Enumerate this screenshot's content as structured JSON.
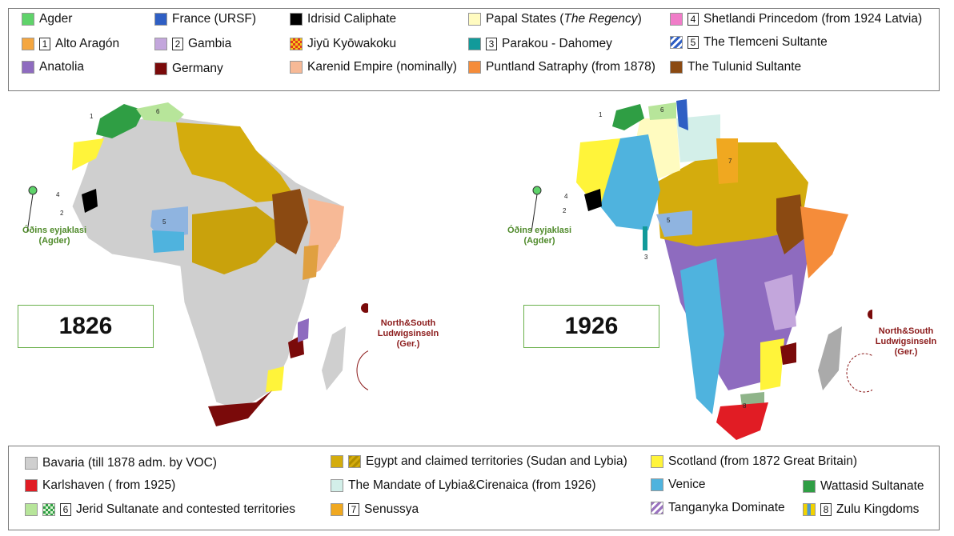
{
  "legend_top": [
    {
      "label": "Agder",
      "color": "#5fd36a"
    },
    {
      "num": "1",
      "label": "Alto Aragón",
      "color": "#f4a640"
    },
    {
      "label": "Anatolia",
      "color": "#8e6bbf"
    },
    {
      "label": "France (URSF)",
      "color": "#2f5fc4"
    },
    {
      "num": "2",
      "label": "Gambia",
      "color": "#c3a6dc"
    },
    {
      "label": "Germany",
      "color": "#7a0a0a"
    },
    {
      "label": "Idrisid Caliphate",
      "color": "#000000"
    },
    {
      "label": "Jiyū Kyōwakoku",
      "color": "#f5c518"
    },
    {
      "label": "Karenid Empire (nominally)",
      "color": "#f7b996"
    },
    {
      "label_pre": "Papal States (",
      "label_em": "The Regency",
      "label_post": ")",
      "color": "#fffbc0"
    },
    {
      "num": "3",
      "label": "Parakou - Dahomey",
      "color": "#129a9a"
    },
    {
      "label": "Puntland Satraphy (from 1878)",
      "color": "#f58c3a"
    },
    {
      "num": "4",
      "label": "Shetlandi Princedom (from 1924 Latvia)",
      "color": "#f07cc8"
    },
    {
      "num": "5",
      "label": "The Tlemceni Sultante",
      "color": "#2f5fc4"
    },
    {
      "label": "The Tulunid Sultante",
      "color": "#8b4a12"
    }
  ],
  "legend_bottom": [
    {
      "label": "Bavaria (till 1878 adm. by VOC)",
      "color": "#cfcfcf"
    },
    {
      "label": "Karlshaven ( from 1925)",
      "color": "#e11c24"
    },
    {
      "num": "6",
      "label": "Jerid Sultanate and  contested territories",
      "color": "#b7e59a"
    },
    {
      "label": "Egypt and claimed territories (Sudan and Lybia)",
      "color": "#d4ac0d"
    },
    {
      "label": "The Mandate of Lybia&Cirenaica (from 1926)",
      "color": "#d3efe9"
    },
    {
      "num": "7",
      "label": "Senussya",
      "color": "#f0a820"
    },
    {
      "label": "Scotland (from 1872 Great Britain)",
      "color": "#fff43a"
    },
    {
      "label": "Venice",
      "color": "#4fb3de"
    },
    {
      "label": "Tanganyka Dominate",
      "color": "#9a72c0"
    },
    {
      "label": "Wattasid Sultanate",
      "color": "#2f9e44"
    },
    {
      "num": "8",
      "label": "Zulu Kingdoms",
      "color": "#f2d200"
    }
  ],
  "maps": {
    "left": {
      "year": "1826",
      "faroe_label": "Óðins eyjaklasi (Agder)",
      "islands_label": "North&South Ludwigsinseln (Ger.)",
      "markers": [
        "1",
        "2",
        "4",
        "5",
        "6"
      ]
    },
    "right": {
      "year": "1926",
      "faroe_label": "Óðins eyjaklasi (Agder)",
      "islands_label": "North&South Ludwigsinseln (Ger.)",
      "markers": [
        "1",
        "2",
        "3",
        "4",
        "5",
        "6",
        "7",
        "8"
      ]
    }
  }
}
